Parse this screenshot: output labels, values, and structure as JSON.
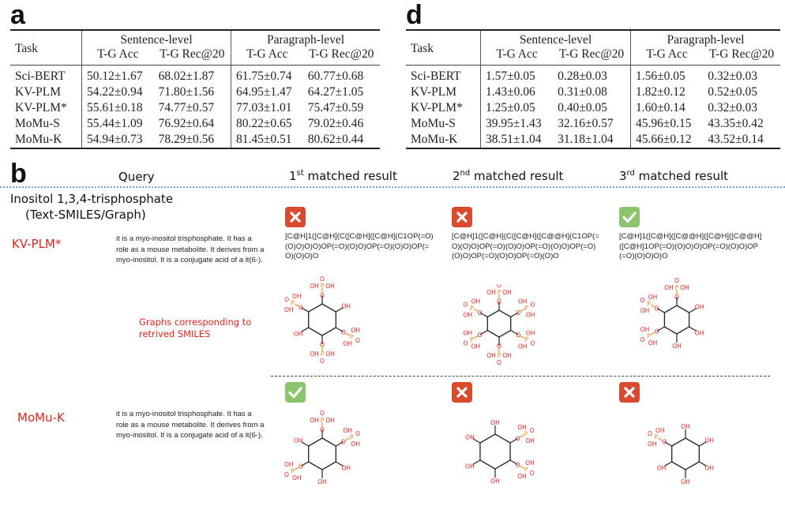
{
  "panel_a": {
    "letter": "a",
    "task_header": "Task",
    "groups": [
      "Sentence-level",
      "Paragraph-level"
    ],
    "subheaders": [
      "T-G Acc",
      "T-G Rec@20",
      "T-G Acc",
      "T-G Rec@20"
    ],
    "rows": [
      {
        "task": "Sci-BERT",
        "values": [
          "50.12±1.67",
          "68.02±1.87",
          "61.75±0.74",
          "60.77±0.68"
        ]
      },
      {
        "task": "KV-PLM",
        "values": [
          "54.22±0.94",
          "71.80±1.56",
          "64.95±1.47",
          "64.27±1.05"
        ]
      },
      {
        "task": "KV-PLM*",
        "values": [
          "55.61±0.18",
          "74.77±0.57",
          "77.03±1.01",
          "75.47±0.59"
        ]
      },
      {
        "task": "MoMu-S",
        "values": [
          "55.44±1.09",
          "76.92±0.64",
          "80.22±0.65",
          "79.02±0.46"
        ]
      },
      {
        "task": "MoMu-K",
        "values": [
          "54.94±0.73",
          "78.29±0.56",
          "81.45±0.51",
          "80.62±0.44"
        ]
      }
    ]
  },
  "panel_d": {
    "letter": "d",
    "task_header": "Task",
    "groups": [
      "Sentence-level",
      "Paragraph-level"
    ],
    "subheaders": [
      "T-G Acc",
      "T-G Rec@20",
      "T-G Acc",
      "T-G Rec@20"
    ],
    "rows": [
      {
        "task": "Sci-BERT",
        "values": [
          "1.57±0.05",
          "0.28±0.03",
          "1.56±0.05",
          "0.32±0.03"
        ]
      },
      {
        "task": "KV-PLM",
        "values": [
          "1.43±0.06",
          "0.31±0.08",
          "1.82±0.12",
          "0.52±0.05"
        ]
      },
      {
        "task": "KV-PLM*",
        "values": [
          "1.25±0.05",
          "0.40±0.05",
          "1.60±0.14",
          "0.32±0.03"
        ]
      },
      {
        "task": "MoMu-S",
        "values": [
          "39.95±1.43",
          "32.16±0.57",
          "45.96±0.15",
          "43.35±0.42"
        ]
      },
      {
        "task": "MoMu-K",
        "values": [
          "38.51±1.04",
          "31.18±1.04",
          "45.66±0.12",
          "43.52±0.14"
        ]
      }
    ]
  },
  "panel_b": {
    "letter": "b",
    "query_header": "Query",
    "result_headers": [
      {
        "num": "1",
        "sup": "st",
        "rest": " matched result"
      },
      {
        "num": "2",
        "sup": "nd",
        "rest": " matched result"
      },
      {
        "num": "3",
        "sup": "rd",
        "rest": " matched result"
      }
    ],
    "query_title": "Inositol 1,3,4-trisphosphate",
    "query_subtitle": "(Text-SMILES/Graph)",
    "graphs_note": "Graphs corresponding to retrived SMILES",
    "models": [
      {
        "name": "KV-PLM*",
        "description": "it is a myo-inositol trisphosphate. It has a role as a mouse metabolite. It derives from a myo-inositol. It is a conjugate acid of a it(6-).",
        "results": [
          {
            "correct": false,
            "smiles": "[C@H]1([C@H](C([C@H]([C@H](C1OP(=O)(O)O)O)O)OP(=O)(O)O)OP(=O)(O)O)OP(=O)(O)O)O"
          },
          {
            "correct": false,
            "smiles": "[C@H]1([C@H](C([C@H]([C@@H](C1OP(=O)(O)O)OP(=O)(O)O)OP(=O)(O)O)OP(=O)(O)O)OP(=O)(O)O)OP(=O)(O)O"
          },
          {
            "correct": true,
            "smiles": "[C@H]1([C@H]([C@@H]([C@H]([C@@H]([C@H]1OP(=O)(O)O)O)OP(=O)(O)O)OP(=O)(O)O)O)O"
          }
        ]
      },
      {
        "name": "MoMu-K",
        "description": "it is a myo-inositol trisphosphate. It has a role as a mouse metabolite. It derives from a myo-inositol. It is a conjugate acid of a it(6-).",
        "results": [
          {
            "correct": true
          },
          {
            "correct": false
          },
          {
            "correct": false
          }
        ]
      }
    ],
    "atom_labels": {
      "oh": "OH",
      "o": "O",
      "p": "P",
      "ho": "HO"
    },
    "colors": {
      "red_text": "#e8231a",
      "wrong": "#d94a2e",
      "right": "#8cc46c",
      "oxygen": "#ee1c1c",
      "phosphorus": "#f08a1c",
      "dotted": "#6fa3d8"
    }
  }
}
